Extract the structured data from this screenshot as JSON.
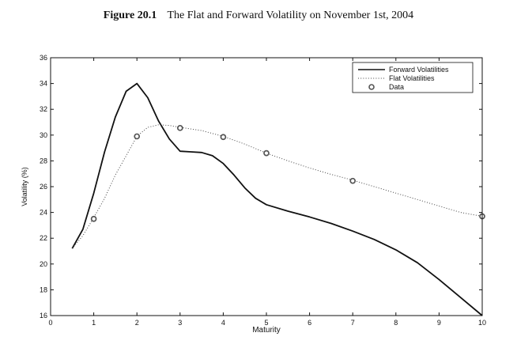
{
  "caption": {
    "figure_number": "Figure 20.1",
    "title": "The Flat and Forward Volatility on November 1st, 2004"
  },
  "chart_data": {
    "type": "line",
    "title": "The Flat and Forward Volatility on November 1st, 2004",
    "xlabel": "Maturity",
    "ylabel": "Volatility (%)",
    "xlim": [
      0,
      10
    ],
    "ylim": [
      16,
      36
    ],
    "xticks": [
      0,
      1,
      2,
      3,
      4,
      5,
      6,
      7,
      8,
      9,
      10
    ],
    "yticks": [
      16,
      18,
      20,
      22,
      24,
      26,
      28,
      30,
      32,
      34,
      36
    ],
    "grid": false,
    "legend_position": "top-right",
    "series": [
      {
        "name": "Forward Volatilities",
        "style": "solid",
        "color": "#111111",
        "x": [
          0.5,
          0.75,
          1.0,
          1.25,
          1.5,
          1.75,
          2.0,
          2.25,
          2.5,
          2.75,
          3.0,
          3.25,
          3.5,
          3.75,
          4.0,
          4.25,
          4.5,
          4.75,
          5.0,
          5.5,
          6.0,
          6.5,
          7.0,
          7.5,
          8.0,
          8.5,
          9.0,
          9.5,
          10.0
        ],
        "y": [
          21.2,
          22.7,
          25.5,
          28.7,
          31.4,
          33.4,
          34.0,
          32.9,
          31.1,
          29.7,
          28.75,
          28.7,
          28.65,
          28.4,
          27.8,
          26.9,
          25.9,
          25.1,
          24.6,
          24.1,
          23.65,
          23.15,
          22.55,
          21.9,
          21.1,
          20.1,
          18.8,
          17.4,
          16.0
        ]
      },
      {
        "name": "Flat Volatilities",
        "style": "dotted",
        "color": "#444444",
        "x": [
          0.5,
          0.75,
          1.0,
          1.25,
          1.5,
          1.75,
          2.0,
          2.25,
          2.5,
          2.75,
          3.0,
          3.5,
          4.0,
          4.5,
          5.0,
          5.5,
          6.0,
          6.5,
          7.0,
          7.5,
          8.0,
          8.5,
          9.0,
          9.5,
          10.0
        ],
        "y": [
          21.2,
          22.2,
          23.6,
          25.1,
          26.9,
          28.4,
          29.9,
          30.6,
          30.8,
          30.75,
          30.6,
          30.35,
          29.9,
          29.3,
          28.6,
          28.0,
          27.45,
          26.95,
          26.5,
          26.0,
          25.5,
          25.0,
          24.5,
          24.0,
          23.7
        ]
      },
      {
        "name": "Data",
        "style": "marker",
        "color": "#555555",
        "x": [
          1,
          2,
          3,
          4,
          5,
          7,
          10
        ],
        "y": [
          23.5,
          29.9,
          30.55,
          29.85,
          28.6,
          26.45,
          23.7
        ]
      }
    ]
  }
}
